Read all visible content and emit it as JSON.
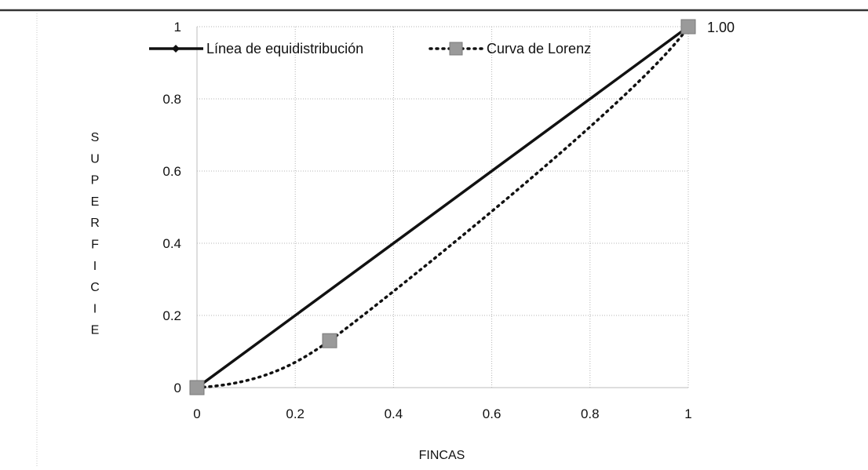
{
  "chart_data": {
    "type": "line",
    "title": "",
    "xlabel": "FINCAS",
    "ylabel": "SUPERFICIE",
    "xlim": [
      0,
      1
    ],
    "ylim": [
      0,
      1
    ],
    "x_ticks": [
      "0",
      "0.2",
      "0.4",
      "0.6",
      "0.8",
      "1"
    ],
    "y_ticks": [
      "0",
      "0.2",
      "0.4",
      "0.6",
      "0.8",
      "1"
    ],
    "grid": "dotted",
    "legend_position": "top",
    "series": [
      {
        "name": "Línea de equidistribución",
        "style": "solid",
        "marker": "diamond",
        "color": "#111111",
        "points": [
          [
            0,
            0
          ],
          [
            1,
            1
          ]
        ]
      },
      {
        "name": "Curva de Lorenz",
        "style": "dotted",
        "marker": "square",
        "color": "#111111",
        "marker_color": "#9a9a9a",
        "points": [
          [
            0,
            0
          ],
          [
            0.27,
            0.13
          ],
          [
            1,
            1
          ]
        ]
      }
    ],
    "annotations": [
      {
        "text": "1.00",
        "x": 1,
        "y": 1
      }
    ]
  }
}
